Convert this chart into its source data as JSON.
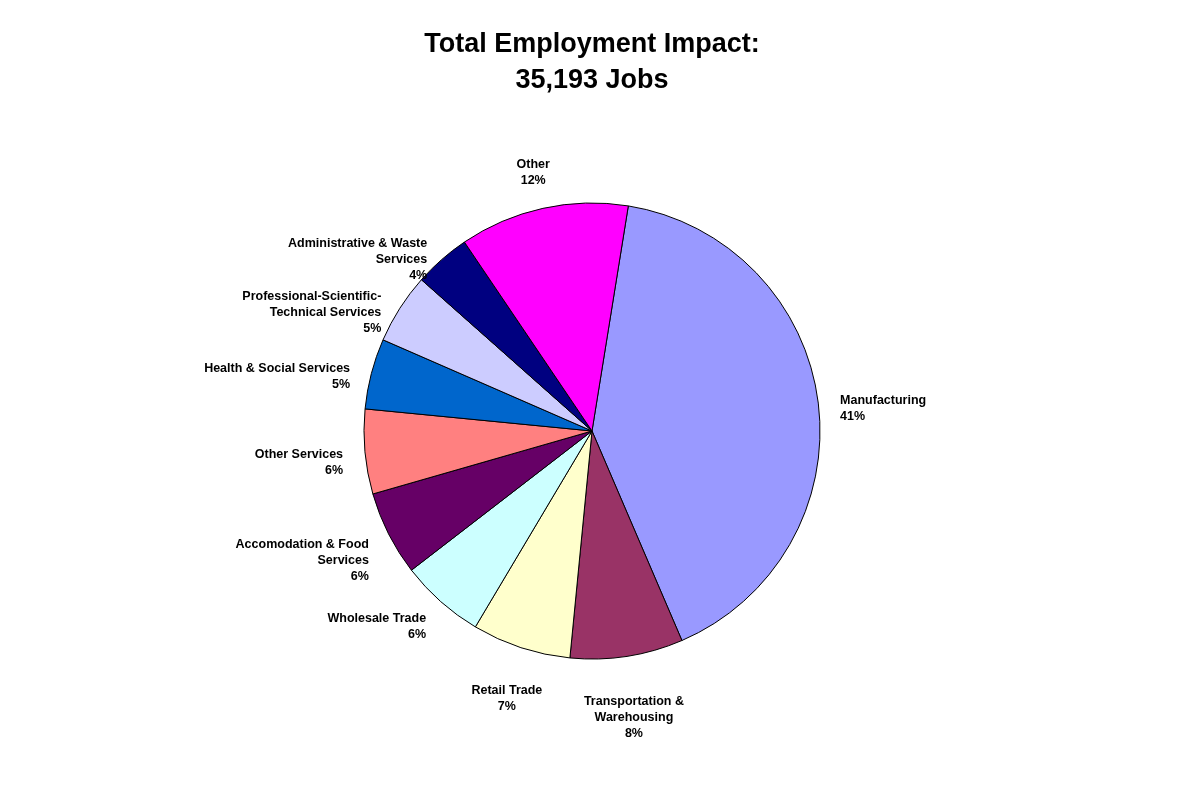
{
  "chart_data": {
    "type": "pie",
    "title": "Total Employment Impact:\n35,193 Jobs",
    "categories": [
      "Manufacturing",
      "Transportation & Warehousing",
      "Retail Trade",
      "Wholesale Trade",
      "Accomodation & Food Services",
      "Other Services",
      "Health & Social Services",
      "Professional-Scientific-Technical Services",
      "Administrative & Waste Services",
      "Other"
    ],
    "values": [
      41,
      8,
      7,
      6,
      6,
      6,
      5,
      5,
      4,
      12
    ],
    "value_labels": [
      "41%",
      "8%",
      "7%",
      "6%",
      "6%",
      "6%",
      "5%",
      "5%",
      "4%",
      "12%"
    ],
    "colors": [
      "#9999ff",
      "#993366",
      "#ffffcc",
      "#ccffff",
      "#660066",
      "#ff8080",
      "#0066cc",
      "#ccccff",
      "#000080",
      "#ff00ff"
    ],
    "legend": false
  }
}
